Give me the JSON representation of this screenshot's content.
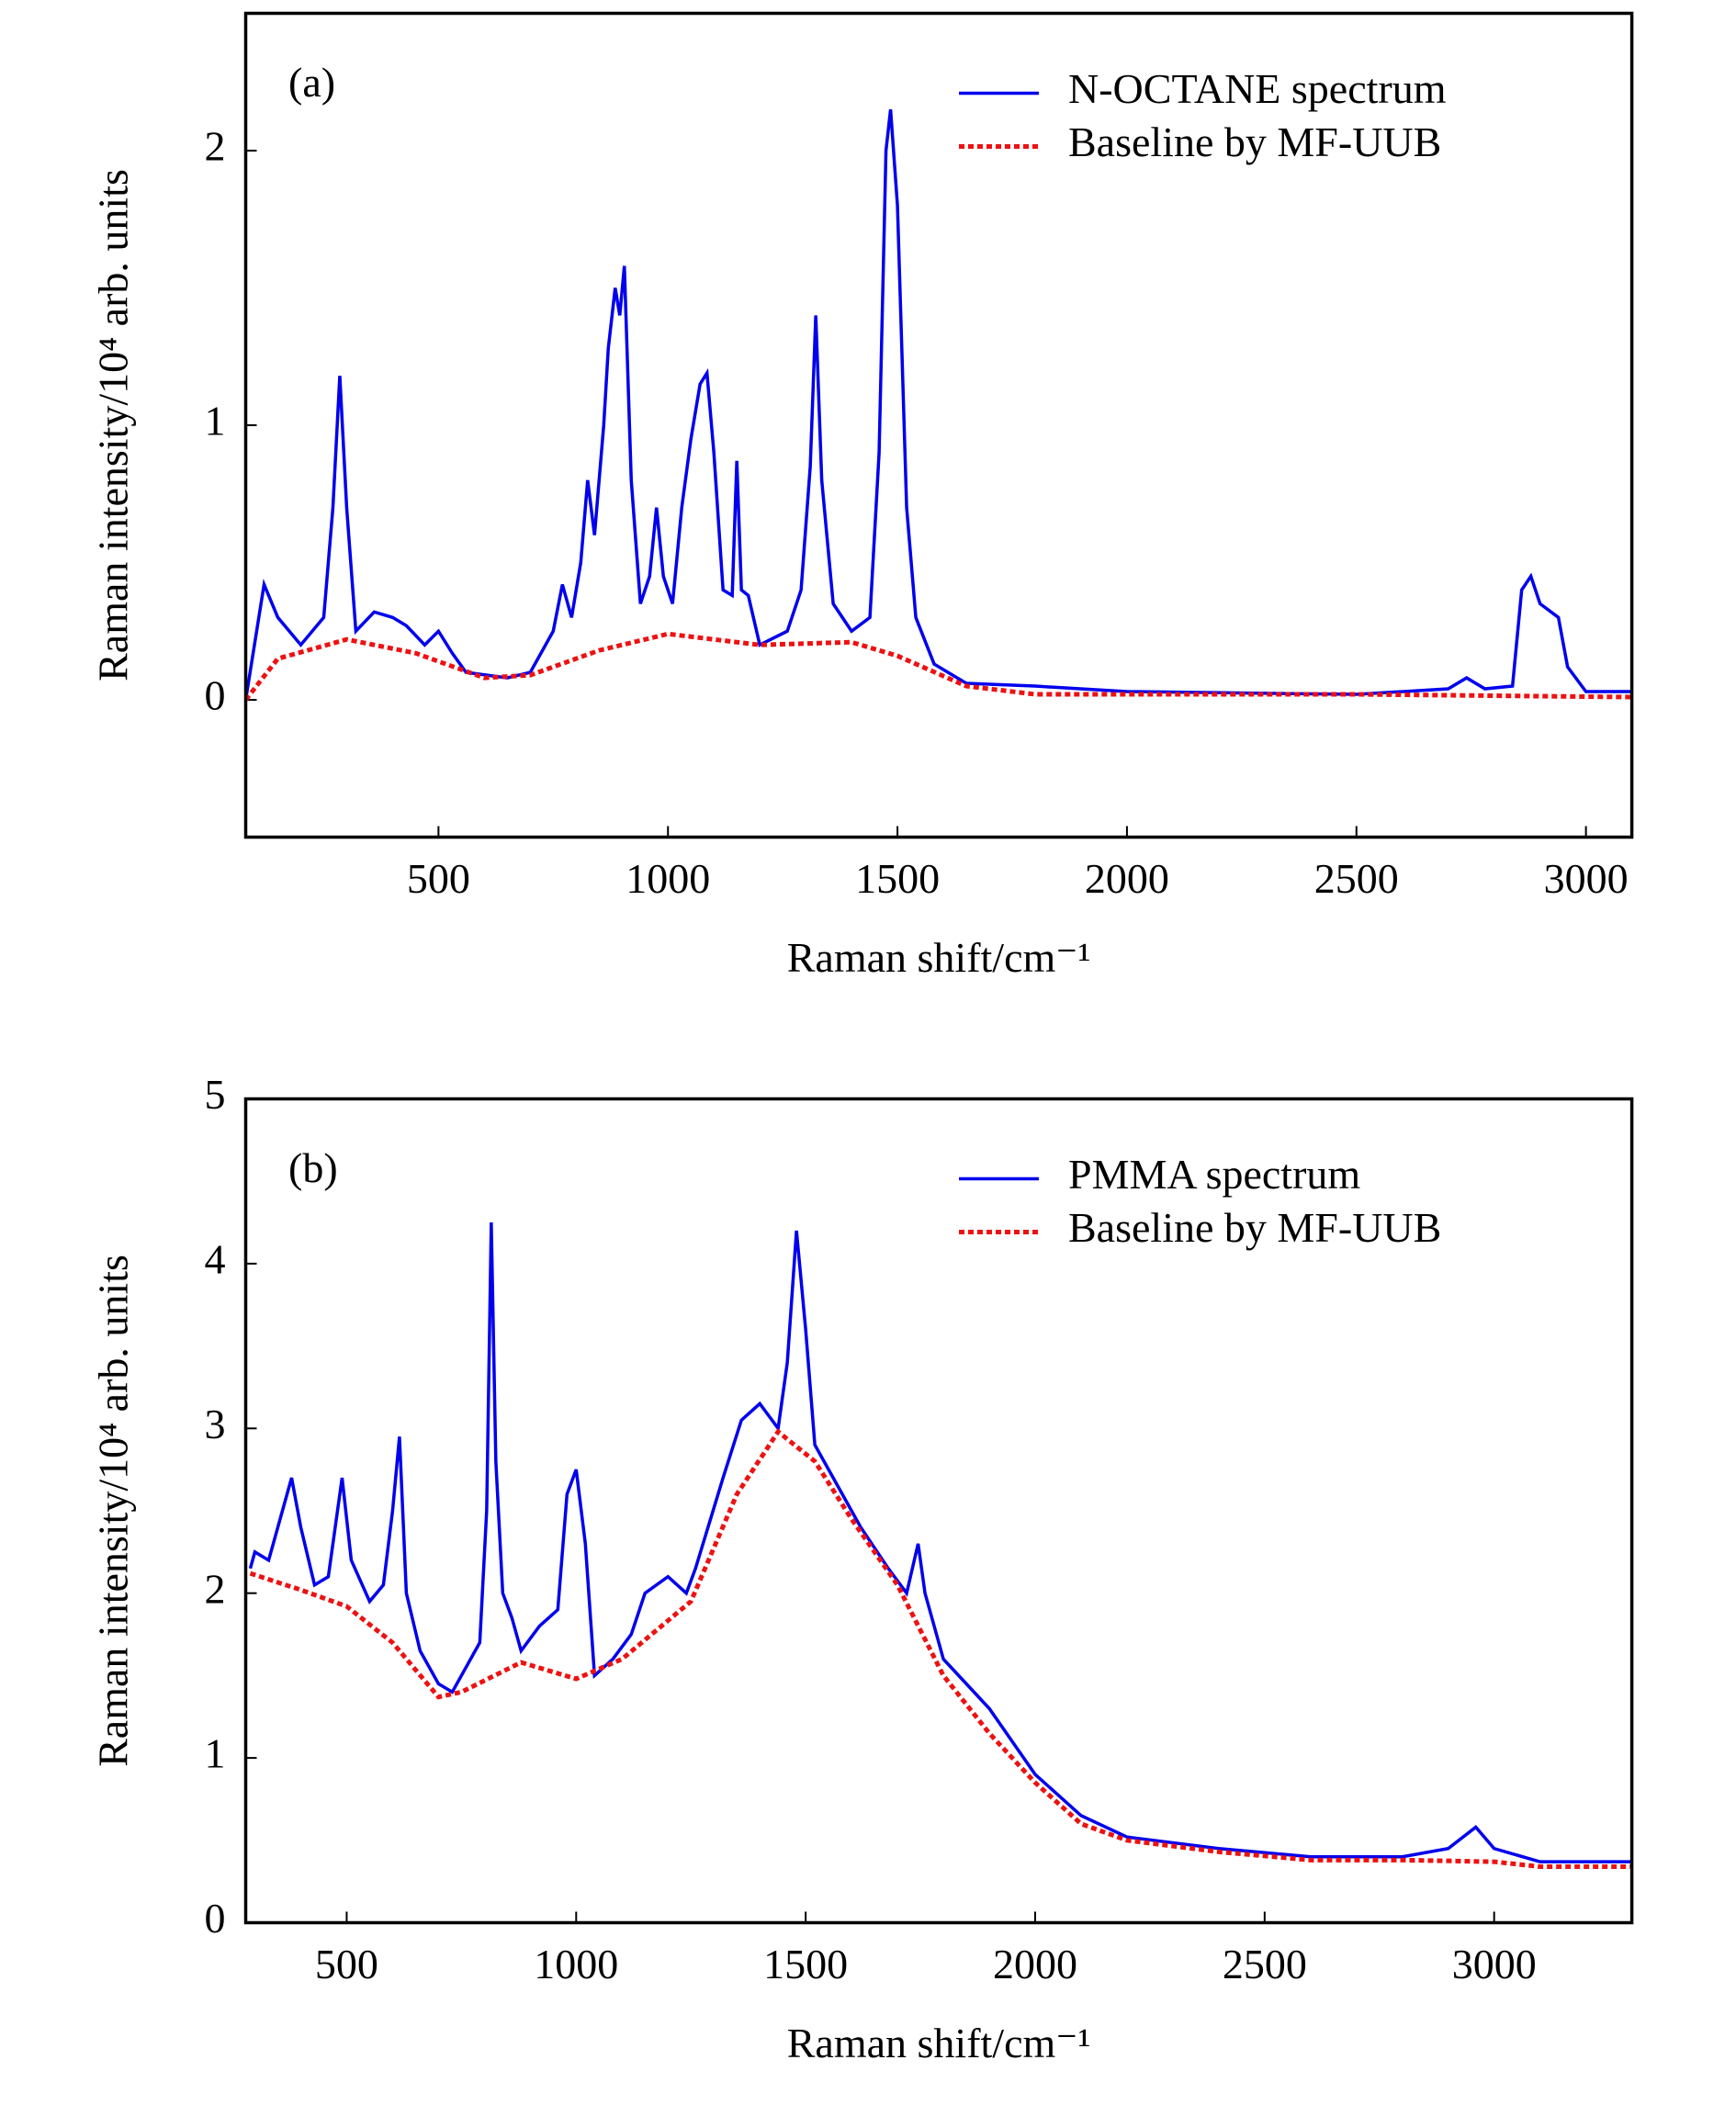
{
  "chart_data": [
    {
      "type": "line",
      "panel_label": "(a)",
      "xlabel": "Raman shift/cm⁻¹",
      "ylabel": "Raman intensity/10⁴ arb. units",
      "xlim": [
        80,
        3100
      ],
      "ylim": [
        -0.5,
        2.5
      ],
      "xticks": [
        500,
        1000,
        1500,
        2000,
        2500,
        3000
      ],
      "yticks": [
        0,
        1,
        2
      ],
      "legend": "upper right",
      "series": [
        {
          "name": "N-OCTANE spectrum",
          "color": "#0000ee",
          "linestyle": "solid",
          "x": [
            80,
            120,
            150,
            200,
            250,
            270,
            285,
            300,
            320,
            360,
            400,
            430,
            470,
            500,
            530,
            560,
            650,
            700,
            750,
            770,
            790,
            810,
            825,
            840,
            860,
            870,
            885,
            895,
            905,
            920,
            940,
            960,
            975,
            990,
            1010,
            1030,
            1050,
            1070,
            1085,
            1100,
            1120,
            1140,
            1150,
            1160,
            1175,
            1200,
            1260,
            1290,
            1310,
            1322,
            1335,
            1360,
            1400,
            1440,
            1460,
            1475,
            1485,
            1500,
            1520,
            1540,
            1580,
            1650,
            1800,
            2000,
            2500,
            2700,
            2740,
            2780,
            2840,
            2860,
            2880,
            2900,
            2940,
            2960,
            3000,
            3100
          ],
          "values": [
            0,
            0.42,
            0.3,
            0.2,
            0.3,
            0.7,
            1.18,
            0.7,
            0.25,
            0.32,
            0.3,
            0.27,
            0.2,
            0.25,
            0.17,
            0.1,
            0.08,
            0.1,
            0.25,
            0.42,
            0.3,
            0.5,
            0.8,
            0.6,
            1.0,
            1.28,
            1.5,
            1.4,
            1.58,
            0.8,
            0.35,
            0.45,
            0.7,
            0.45,
            0.35,
            0.7,
            0.95,
            1.15,
            1.19,
            0.9,
            0.4,
            0.38,
            0.87,
            0.4,
            0.38,
            0.2,
            0.25,
            0.4,
            0.85,
            1.4,
            0.8,
            0.35,
            0.25,
            0.3,
            0.9,
            2.0,
            2.15,
            1.8,
            0.7,
            0.3,
            0.13,
            0.06,
            0.05,
            0.03,
            0.02,
            0.04,
            0.08,
            0.04,
            0.05,
            0.4,
            0.45,
            0.35,
            0.3,
            0.12,
            0.03,
            0.03
          ]
        },
        {
          "name": "Baseline by MF-UUB",
          "color": "#ee1111",
          "linestyle": "dotted",
          "x": [
            80,
            150,
            300,
            450,
            600,
            700,
            850,
            1000,
            1200,
            1400,
            1500,
            1650,
            1800,
            2500,
            3100
          ],
          "values": [
            0,
            0.15,
            0.22,
            0.17,
            0.08,
            0.09,
            0.18,
            0.24,
            0.2,
            0.21,
            0.16,
            0.05,
            0.02,
            0.02,
            0.01
          ]
        }
      ]
    },
    {
      "type": "line",
      "panel_label": "(b)",
      "xlabel": "Raman shift/cm⁻¹",
      "ylabel": "Raman intensity/10⁴ arb. units",
      "xlim": [
        280,
        3300
      ],
      "ylim": [
        0,
        5
      ],
      "xticks": [
        500,
        1000,
        1500,
        2000,
        2500,
        3000
      ],
      "yticks": [
        0,
        1,
        2,
        3,
        4,
        5
      ],
      "legend": "upper right",
      "series": [
        {
          "name": "PMMA spectrum",
          "color": "#0000ee",
          "linestyle": "solid",
          "x": [
            290,
            300,
            330,
            360,
            380,
            400,
            430,
            460,
            490,
            510,
            550,
            580,
            600,
            615,
            630,
            660,
            700,
            730,
            760,
            790,
            805,
            815,
            825,
            840,
            860,
            880,
            920,
            960,
            980,
            1000,
            1020,
            1040,
            1080,
            1120,
            1150,
            1200,
            1240,
            1260,
            1320,
            1360,
            1400,
            1440,
            1460,
            1480,
            1500,
            1520,
            1560,
            1620,
            1680,
            1720,
            1745,
            1760,
            1800,
            1900,
            2000,
            2100,
            2200,
            2400,
            2600,
            2800,
            2900,
            2960,
            3000,
            3100,
            3300
          ],
          "values": [
            2.15,
            2.25,
            2.2,
            2.5,
            2.7,
            2.4,
            2.05,
            2.1,
            2.7,
            2.2,
            1.95,
            2.05,
            2.5,
            2.95,
            2.0,
            1.65,
            1.45,
            1.4,
            1.55,
            1.7,
            2.5,
            4.25,
            2.8,
            2.0,
            1.85,
            1.65,
            1.8,
            1.9,
            2.6,
            2.75,
            2.3,
            1.5,
            1.6,
            1.75,
            2.0,
            2.1,
            2.0,
            2.15,
            2.7,
            3.05,
            3.15,
            3.0,
            3.4,
            4.2,
            3.6,
            2.9,
            2.7,
            2.4,
            2.15,
            2.0,
            2.3,
            2.0,
            1.6,
            1.3,
            0.9,
            0.65,
            0.52,
            0.45,
            0.4,
            0.4,
            0.45,
            0.58,
            0.45,
            0.37,
            0.37
          ]
        },
        {
          "name": "Baseline by MF-UUB",
          "color": "#ee1111",
          "linestyle": "dotted",
          "x": [
            290,
            400,
            500,
            600,
            700,
            750,
            880,
            1000,
            1100,
            1250,
            1350,
            1440,
            1520,
            1600,
            1700,
            1800,
            1900,
            2000,
            2100,
            2200,
            2400,
            2600,
            2800,
            3000,
            3100,
            3300
          ],
          "values": [
            2.12,
            2.02,
            1.92,
            1.7,
            1.37,
            1.4,
            1.58,
            1.48,
            1.6,
            1.95,
            2.6,
            2.98,
            2.8,
            2.45,
            2.05,
            1.5,
            1.15,
            0.85,
            0.6,
            0.5,
            0.43,
            0.38,
            0.38,
            0.37,
            0.34,
            0.34
          ]
        }
      ]
    }
  ]
}
